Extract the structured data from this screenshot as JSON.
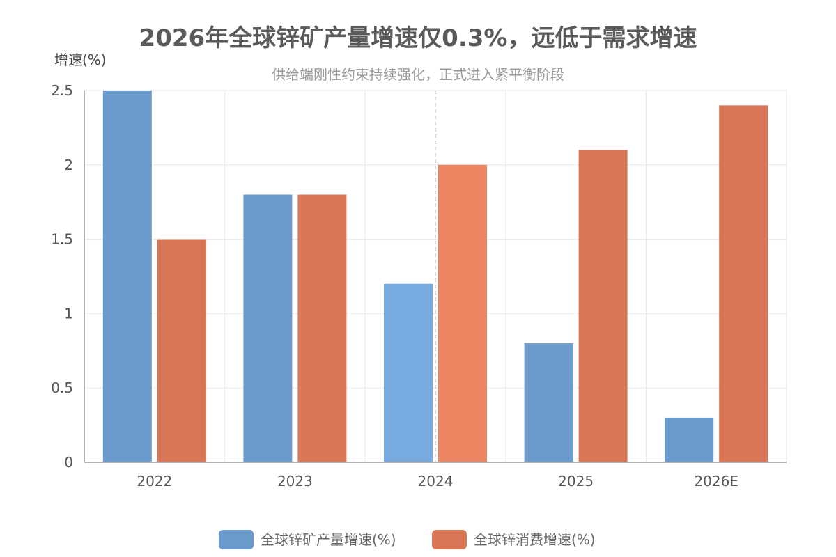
{
  "chart_data": {
    "type": "bar",
    "title": "2026年全球锌矿产量增速仅0.3%，远低于需求增速",
    "subtitle": "供给端刚性约束持续强化，正式进入紧平衡阶段",
    "ylabel": "增速(%)",
    "xlabel": "",
    "categories": [
      "2022",
      "2023",
      "2024",
      "2025",
      "2026E"
    ],
    "series": [
      {
        "name": "全球锌矿产量增速(%)",
        "values": [
          2.5,
          1.8,
          1.2,
          0.8,
          0.3
        ],
        "color": "#6a9bcc",
        "highlight_color": "#77aade"
      },
      {
        "name": "全球锌消费增速(%)",
        "values": [
          1.5,
          1.8,
          2.0,
          2.1,
          2.4
        ],
        "color": "#d97655",
        "highlight_color": "#ec8361"
      }
    ],
    "highlighted_category": "2024",
    "ylim": [
      0,
      2.5
    ],
    "yticks": [
      0,
      0.5,
      1,
      1.5,
      2,
      2.5
    ],
    "ytick_labels": [
      "0",
      "0.5",
      "1",
      "1.5",
      "2",
      "2.5"
    ],
    "grid": true,
    "legend_position": "bottom-center",
    "grid_color": "#e8e8e8",
    "axis_color": "#999999",
    "marker_line_color": "#c0c0c0"
  }
}
